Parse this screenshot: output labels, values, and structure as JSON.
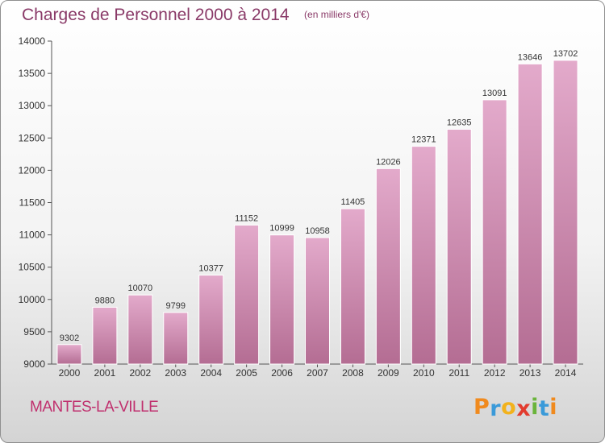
{
  "chart_data": {
    "type": "bar",
    "title": "Charges de Personnel 2000 à 2014",
    "subtitle": "(en milliers d'€)",
    "categories": [
      "2000",
      "2001",
      "2002",
      "2003",
      "2004",
      "2005",
      "2006",
      "2007",
      "2008",
      "2009",
      "2010",
      "2011",
      "2012",
      "2013",
      "2014"
    ],
    "values": [
      9302,
      9880,
      10070,
      9799,
      10377,
      11152,
      10999,
      10958,
      11405,
      12026,
      12371,
      12635,
      13091,
      13646,
      13702
    ],
    "ylim": [
      9000,
      14000
    ],
    "yticks": [
      9000,
      9500,
      10000,
      10500,
      11000,
      11500,
      12000,
      12500,
      13000,
      13500,
      14000
    ],
    "grid": false,
    "colors": {
      "bar_top": "#e3aacb",
      "bar_bottom": "#b46d93",
      "text": "#8a3a68"
    }
  },
  "footer": {
    "commune": "MANTES-LA-VILLE"
  },
  "logo": {
    "letters": [
      "P",
      "r",
      "o",
      "x",
      "i",
      "t",
      "i"
    ],
    "colors": [
      "#f08a1e",
      "#3a9ad9",
      "#f2b21c",
      "#e23b2e",
      "#6ab43b",
      "#3a9ad9",
      "#f08a1e"
    ]
  }
}
